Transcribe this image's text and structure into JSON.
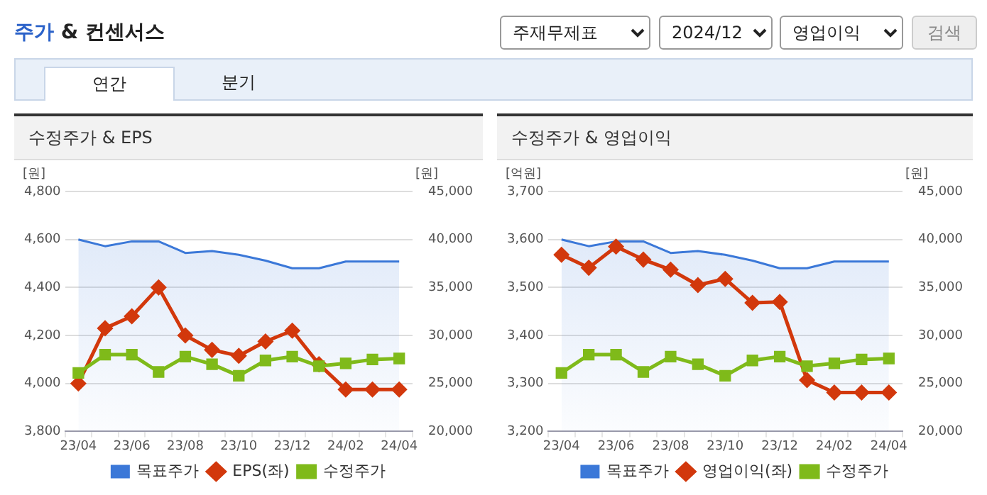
{
  "chart_data": [
    {
      "type": "other",
      "title": "주가 & 컨센서스",
      "annotations": [
        "주재무제표",
        "2024/12",
        "영업이익",
        "검색",
        "연간",
        "분기"
      ]
    },
    {
      "type": "line",
      "title": "수정주가 & EPS",
      "ylabel": "[원]",
      "y2label": "[원]",
      "categories": [
        "23/04",
        null,
        "23/06",
        null,
        "23/08",
        null,
        "23/10",
        null,
        "23/12",
        null,
        "24/02",
        null,
        "24/04"
      ],
      "series": [
        {
          "name": "목표주가",
          "type": "area",
          "axis": "y2",
          "color": "#3b78d8",
          "marker": "none",
          "values": [
            40000,
            39300,
            39800,
            39800,
            38600,
            38800,
            38400,
            37800,
            37000,
            37000,
            37700,
            37700,
            37700
          ]
        },
        {
          "name": "EPS(좌)",
          "type": "line",
          "color": "#d2380c",
          "marker": "diamond",
          "values": [
            4000,
            4230,
            4280,
            4400,
            4200,
            4140,
            4115,
            4175,
            4220,
            4080,
            3975,
            3975,
            3975
          ]
        },
        {
          "name": "수정주가",
          "type": "line",
          "axis": "y2",
          "color": "#7fba1a",
          "marker": "square",
          "values": [
            26100,
            28000,
            28000,
            26200,
            27800,
            27000,
            25800,
            27400,
            27800,
            26800,
            27100,
            27500,
            27600
          ]
        }
      ],
      "ylim": [
        3800,
        4800
      ],
      "yticks": [
        {
          "value": 3800,
          "label": "3,800"
        },
        {
          "value": 4000,
          "label": "4,000"
        },
        {
          "value": 4200,
          "label": "4,200"
        },
        {
          "value": 4400,
          "label": "4,400"
        },
        {
          "value": 4600,
          "label": "4,600"
        },
        {
          "value": 4800,
          "label": "4,800"
        }
      ],
      "y2lim": [
        20000,
        45000
      ],
      "y2ticks": [
        {
          "value": 20000,
          "label": "20,000"
        },
        {
          "value": 25000,
          "label": "25,000"
        },
        {
          "value": 30000,
          "label": "30,000"
        },
        {
          "value": 35000,
          "label": "35,000"
        },
        {
          "value": 40000,
          "label": "40,000"
        },
        {
          "value": 45000,
          "label": "45,000"
        }
      ],
      "grid": "y",
      "legend": "bottom"
    },
    {
      "type": "line",
      "title": "수정주가 & 영업이익",
      "ylabel": "[억원]",
      "y2label": "[원]",
      "categories": [
        "23/04",
        null,
        "23/06",
        null,
        "23/08",
        null,
        "23/10",
        null,
        "23/12",
        null,
        "24/02",
        null,
        "24/04"
      ],
      "series": [
        {
          "name": "목표주가",
          "type": "area",
          "axis": "y2",
          "color": "#3b78d8",
          "marker": "none",
          "values": [
            40000,
            39300,
            39800,
            39800,
            38600,
            38800,
            38400,
            37800,
            37000,
            37000,
            37700,
            37700,
            37700
          ]
        },
        {
          "name": "영업이익(좌)",
          "type": "line",
          "color": "#d2380c",
          "marker": "diamond",
          "values": [
            3568,
            3541,
            3585,
            3558,
            3537,
            3505,
            3518,
            3468,
            3470,
            3307,
            3281,
            3281,
            3281
          ]
        },
        {
          "name": "수정주가",
          "type": "line",
          "axis": "y2",
          "color": "#7fba1a",
          "marker": "square",
          "values": [
            26100,
            28000,
            28000,
            26200,
            27800,
            27000,
            25800,
            27400,
            27800,
            26800,
            27100,
            27500,
            27600
          ]
        }
      ],
      "ylim": [
        3200,
        3700
      ],
      "yticks": [
        {
          "value": 3200,
          "label": "3,200"
        },
        {
          "value": 3300,
          "label": "3,300"
        },
        {
          "value": 3400,
          "label": "3,400"
        },
        {
          "value": 3500,
          "label": "3,500"
        },
        {
          "value": 3600,
          "label": "3,600"
        },
        {
          "value": 3700,
          "label": "3,700"
        }
      ],
      "y2lim": [
        20000,
        45000
      ],
      "y2ticks": [
        {
          "value": 20000,
          "label": "20,000"
        },
        {
          "value": 25000,
          "label": "25,000"
        },
        {
          "value": 30000,
          "label": "30,000"
        },
        {
          "value": 35000,
          "label": "35,000"
        },
        {
          "value": 40000,
          "label": "40,000"
        },
        {
          "value": 45000,
          "label": "45,000"
        }
      ],
      "grid": "y",
      "legend": "bottom"
    }
  ]
}
